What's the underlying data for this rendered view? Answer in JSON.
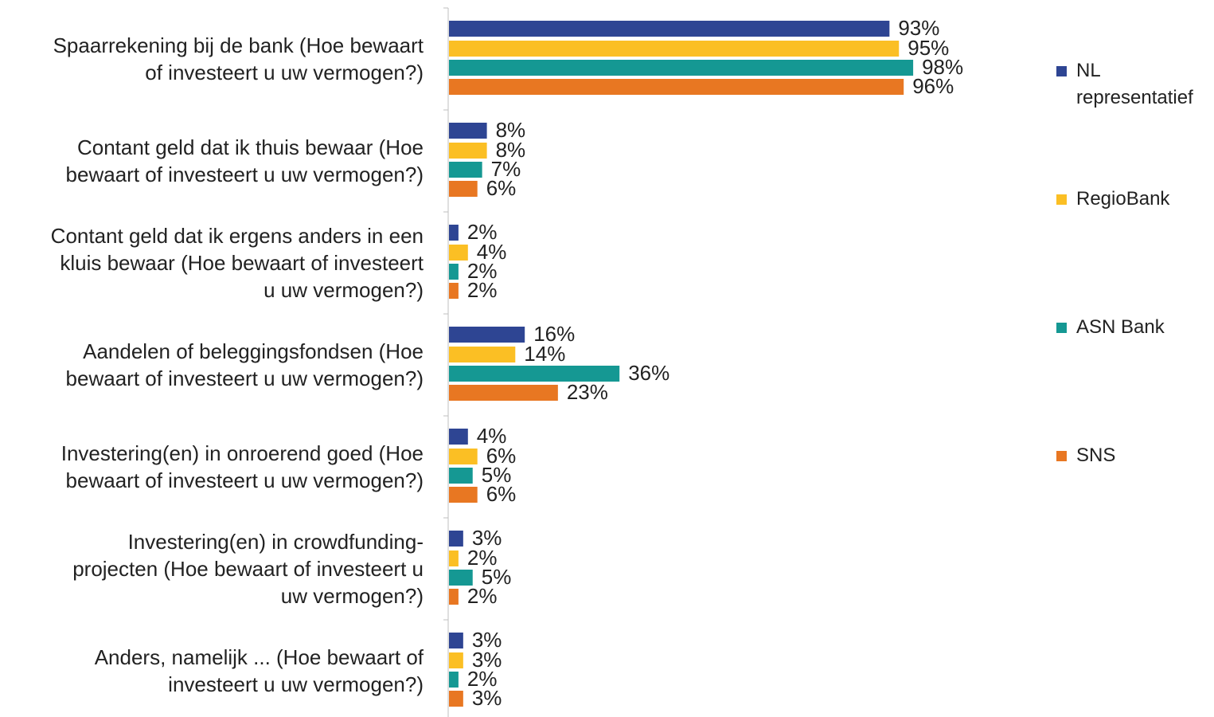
{
  "chart_data": {
    "type": "bar",
    "orientation": "horizontal",
    "categories": [
      "Spaarrekening bij de bank (Hoe bewaart of investeert u uw vermogen?)",
      "Contant geld dat ik thuis bewaar (Hoe bewaart of investeert u uw vermogen?)",
      "Contant geld dat ik ergens anders in een kluis bewaar (Hoe bewaart of investeert u uw vermogen?)",
      "Aandelen of beleggingsfondsen (Hoe bewaart of investeert u uw vermogen?)",
      "Investering(en) in onroerend goed (Hoe bewaart of investeert u uw vermogen?)",
      "Investering(en) in crowdfunding-projecten (Hoe bewaart of investeert u uw vermogen?)",
      "Anders, namelijk ... (Hoe bewaart of investeert u uw vermogen?)"
    ],
    "category_lines": [
      [
        "Spaarrekening bij de bank (Hoe bewaart",
        "of investeert u uw vermogen?)"
      ],
      [
        "Contant geld dat ik thuis bewaar (Hoe",
        "bewaart of investeert u uw vermogen?)"
      ],
      [
        "Contant geld dat ik ergens anders in een",
        "kluis bewaar (Hoe bewaart of investeert",
        "u uw vermogen?)"
      ],
      [
        "Aandelen of beleggingsfondsen (Hoe",
        "bewaart of investeert u uw vermogen?)"
      ],
      [
        "Investering(en) in onroerend goed (Hoe",
        "bewaart of investeert u uw vermogen?)"
      ],
      [
        "Investering(en) in crowdfunding-",
        "projecten (Hoe bewaart of investeert u",
        "uw vermogen?)"
      ],
      [
        "Anders, namelijk ... (Hoe bewaart of",
        "investeert u uw vermogen?)"
      ]
    ],
    "series": [
      {
        "name": "NL representatief",
        "legend_lines": [
          "NL",
          "representatief"
        ],
        "color": "#2E4593",
        "values": [
          93,
          8,
          2,
          16,
          4,
          3,
          3
        ]
      },
      {
        "name": "RegioBank",
        "legend_lines": [
          "RegioBank"
        ],
        "color": "#FBBF24",
        "values": [
          95,
          8,
          4,
          14,
          6,
          2,
          3
        ]
      },
      {
        "name": "ASN Bank",
        "legend_lines": [
          "ASN Bank"
        ],
        "color": "#159893",
        "values": [
          98,
          7,
          2,
          36,
          5,
          5,
          2
        ]
      },
      {
        "name": "SNS",
        "legend_lines": [
          "SNS"
        ],
        "color": "#E87722",
        "values": [
          96,
          6,
          2,
          23,
          6,
          2,
          3
        ]
      }
    ],
    "value_suffix": "%",
    "xlim": [
      0,
      100
    ],
    "grid": false,
    "legend_position": "right"
  }
}
